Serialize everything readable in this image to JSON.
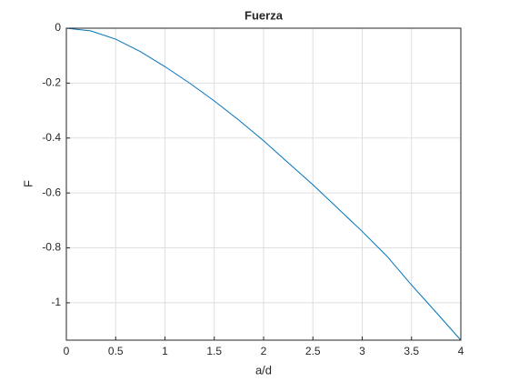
{
  "chart_data": {
    "type": "line",
    "title": "Fuerza",
    "x_label": "a/d",
    "y_label": "F",
    "x": [
      0,
      0.25,
      0.5,
      0.75,
      1,
      1.25,
      1.5,
      1.75,
      2,
      2.25,
      2.5,
      2.75,
      3,
      3.25,
      3.5,
      3.75,
      4
    ],
    "series": [
      {
        "color": "#0072bd",
        "values": [
          0,
          -0.01,
          -0.04,
          -0.085,
          -0.14,
          -0.2,
          -0.265,
          -0.335,
          -0.41,
          -0.49,
          -0.57,
          -0.655,
          -0.74,
          -0.83,
          -0.935,
          -1.035,
          -1.136
        ]
      }
    ],
    "xlim": [
      0,
      4
    ],
    "ylim": [
      -1.136,
      0
    ],
    "xticks": [
      0,
      0.5,
      1,
      1.5,
      2,
      2.5,
      3,
      3.5,
      4
    ],
    "yticks": [
      -1,
      -0.8,
      -0.6,
      -0.4,
      -0.2,
      0
    ],
    "grid": true
  }
}
